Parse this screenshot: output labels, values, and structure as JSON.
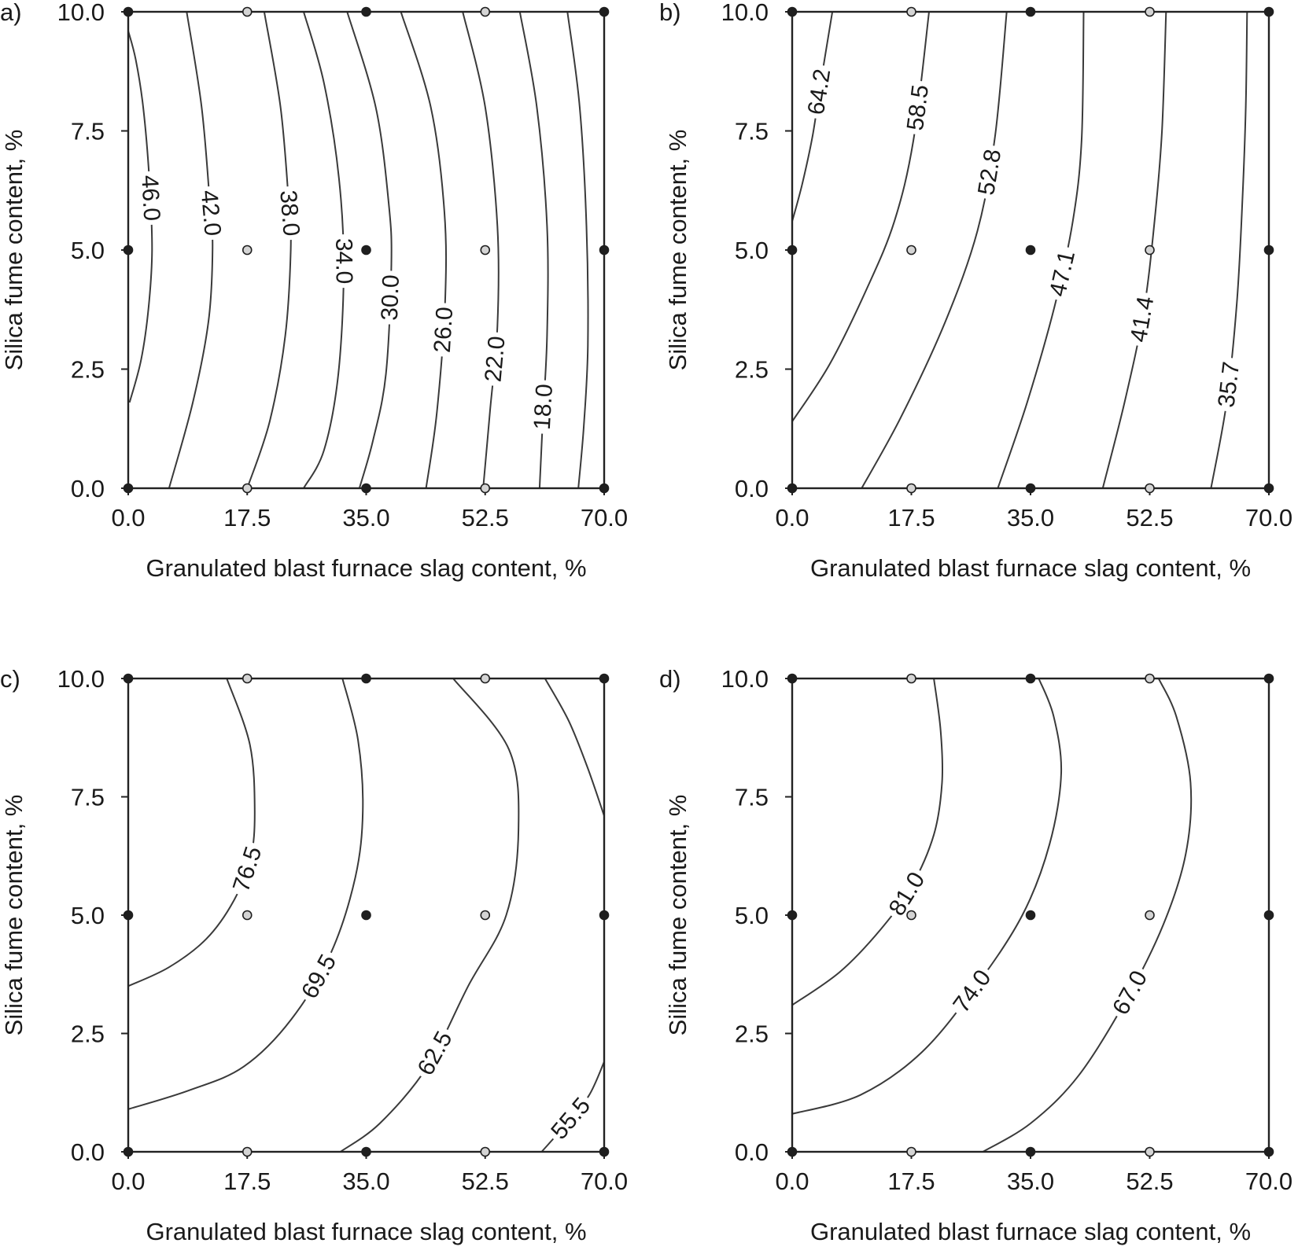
{
  "chart_data": [
    {
      "type": "contour",
      "panel": "a)",
      "xlabel": "Granulated blast furnace slag content, %",
      "ylabel": "Silica fume content, %",
      "xlim": [
        0,
        70
      ],
      "ylim": [
        0,
        10
      ],
      "xticks": [
        "0.0",
        "17.5",
        "35.0",
        "52.5",
        "70.0"
      ],
      "yticks": [
        "0.0",
        "2.5",
        "5.0",
        "7.5",
        "10.0"
      ],
      "design_points": [
        {
          "x": 0,
          "y": 0,
          "tone": "dark"
        },
        {
          "x": 17.5,
          "y": 0,
          "tone": "light"
        },
        {
          "x": 35,
          "y": 0,
          "tone": "dark"
        },
        {
          "x": 52.5,
          "y": 0,
          "tone": "light"
        },
        {
          "x": 70,
          "y": 0,
          "tone": "dark"
        },
        {
          "x": 0,
          "y": 5,
          "tone": "dark"
        },
        {
          "x": 17.5,
          "y": 5,
          "tone": "light"
        },
        {
          "x": 35,
          "y": 5,
          "tone": "dark"
        },
        {
          "x": 52.5,
          "y": 5,
          "tone": "light"
        },
        {
          "x": 70,
          "y": 5,
          "tone": "dark"
        },
        {
          "x": 0,
          "y": 10,
          "tone": "dark"
        },
        {
          "x": 17.5,
          "y": 10,
          "tone": "light"
        },
        {
          "x": 35,
          "y": 10,
          "tone": "dark"
        },
        {
          "x": 52.5,
          "y": 10,
          "tone": "light"
        },
        {
          "x": 70,
          "y": 10,
          "tone": "dark"
        }
      ],
      "contours": [
        {
          "level": "46.0",
          "points": [
            [
              0.0,
              9.6
            ],
            [
              1.1,
              9.0
            ],
            [
              2.2,
              8.0
            ],
            [
              3.1,
              6.5
            ],
            [
              3.5,
              5.0
            ],
            [
              3.0,
              3.8
            ],
            [
              1.9,
              2.7
            ],
            [
              0.2,
              1.8
            ]
          ],
          "label_at": 0.45
        },
        {
          "level": "42.0",
          "points": [
            [
              8.6,
              10
            ],
            [
              10.8,
              8.0
            ],
            [
              12.0,
              6.0
            ],
            [
              12.4,
              5.0
            ],
            [
              11.8,
              3.5
            ],
            [
              9.5,
              1.8
            ],
            [
              6.0,
              0.0
            ]
          ],
          "label_at": 0.42
        },
        {
          "level": "38.0",
          "points": [
            [
              20.0,
              10
            ],
            [
              22.4,
              8.0
            ],
            [
              23.6,
              6.0
            ],
            [
              23.9,
              5.0
            ],
            [
              23.1,
              3.2
            ],
            [
              20.8,
              1.4
            ],
            [
              17.5,
              0.0
            ]
          ],
          "label_at": 0.42
        },
        {
          "level": "34.0",
          "points": [
            [
              25.8,
              10
            ],
            [
              28.8,
              8.5
            ],
            [
              31.0,
              6.5
            ],
            [
              31.7,
              4.6
            ],
            [
              30.9,
              2.4
            ],
            [
              28.8,
              0.8
            ],
            [
              25.8,
              0.0
            ]
          ],
          "label_at": 0.52
        },
        {
          "level": "30.0",
          "points": [
            [
              32.2,
              10
            ],
            [
              36.4,
              8.0
            ],
            [
              38.3,
              6.0
            ],
            [
              38.7,
              4.7
            ],
            [
              37.9,
              2.4
            ],
            [
              36.0,
              1.0
            ],
            [
              34.0,
              0.0
            ]
          ],
          "label_at": 0.6
        },
        {
          "level": "26.0",
          "points": [
            [
              40.1,
              10
            ],
            [
              44.5,
              8.0
            ],
            [
              46.5,
              5.8
            ],
            [
              46.6,
              3.9
            ],
            [
              45.4,
              1.6
            ],
            [
              43.8,
              0.0
            ]
          ],
          "label_at": 0.67
        },
        {
          "level": "22.0",
          "points": [
            [
              49.2,
              10
            ],
            [
              52.5,
              8.0
            ],
            [
              54.3,
              5.5
            ],
            [
              54.3,
              3.4
            ],
            [
              53.2,
              1.6
            ],
            [
              52.2,
              0.0
            ]
          ],
          "label_at": 0.73
        },
        {
          "level": "18.0",
          "points": [
            [
              57.6,
              10
            ],
            [
              60.1,
              8.0
            ],
            [
              61.6,
              5.5
            ],
            [
              61.6,
              3.2
            ],
            [
              61.0,
              1.5
            ],
            [
              60.5,
              0.0
            ]
          ],
          "label_at": 0.83
        },
        {
          "level": "",
          "points": [
            [
              64.6,
              10
            ],
            [
              66.4,
              8.0
            ],
            [
              67.4,
              5.5
            ],
            [
              67.6,
              3.0
            ],
            [
              67.0,
              1.3
            ],
            [
              66.2,
              0.0
            ]
          ],
          "label_at": null
        }
      ]
    },
    {
      "type": "contour",
      "panel": "b)",
      "xlabel": "Granulated blast furnace slag content, %",
      "ylabel": "Silica fume content, %",
      "xlim": [
        0,
        70
      ],
      "ylim": [
        0,
        10
      ],
      "xticks": [
        "0.0",
        "17.5",
        "35.0",
        "52.5",
        "70.0"
      ],
      "yticks": [
        "0.0",
        "2.5",
        "5.0",
        "7.5",
        "10.0"
      ],
      "design_points": [
        {
          "x": 0,
          "y": 0,
          "tone": "dark"
        },
        {
          "x": 17.5,
          "y": 0,
          "tone": "light"
        },
        {
          "x": 35,
          "y": 0,
          "tone": "dark"
        },
        {
          "x": 52.5,
          "y": 0,
          "tone": "light"
        },
        {
          "x": 70,
          "y": 0,
          "tone": "dark"
        },
        {
          "x": 0,
          "y": 5,
          "tone": "dark"
        },
        {
          "x": 17.5,
          "y": 5,
          "tone": "light"
        },
        {
          "x": 35,
          "y": 5,
          "tone": "dark"
        },
        {
          "x": 52.5,
          "y": 5,
          "tone": "light"
        },
        {
          "x": 70,
          "y": 5,
          "tone": "dark"
        },
        {
          "x": 0,
          "y": 10,
          "tone": "dark"
        },
        {
          "x": 17.5,
          "y": 10,
          "tone": "light"
        },
        {
          "x": 35,
          "y": 10,
          "tone": "dark"
        },
        {
          "x": 52.5,
          "y": 10,
          "tone": "light"
        },
        {
          "x": 70,
          "y": 10,
          "tone": "dark"
        }
      ],
      "contours": [
        {
          "level": "64.2",
          "points": [
            [
              0.0,
              5.6
            ],
            [
              1.5,
              6.4
            ],
            [
              3.0,
              7.4
            ],
            [
              4.3,
              8.6
            ],
            [
              5.9,
              10
            ]
          ],
          "label_at": 0.62
        },
        {
          "level": "58.5",
          "points": [
            [
              0.0,
              1.4
            ],
            [
              5.5,
              2.6
            ],
            [
              11.0,
              4.2
            ],
            [
              15.0,
              5.6
            ],
            [
              17.8,
              7.3
            ],
            [
              20.1,
              10
            ]
          ],
          "label_at": 0.78
        },
        {
          "level": "52.8",
          "points": [
            [
              10.2,
              0.0
            ],
            [
              16.0,
              1.5
            ],
            [
              22.5,
              3.5
            ],
            [
              27.2,
              5.4
            ],
            [
              29.8,
              7.4
            ],
            [
              31.5,
              10
            ]
          ],
          "label_at": 0.68
        },
        {
          "level": "47.1",
          "points": [
            [
              30.2,
              0.0
            ],
            [
              34.5,
              1.8
            ],
            [
              38.5,
              3.8
            ],
            [
              41.2,
              5.6
            ],
            [
              42.5,
              7.3
            ],
            [
              42.8,
              10
            ]
          ],
          "label_at": 0.46
        },
        {
          "level": "41.4",
          "points": [
            [
              45.6,
              0.0
            ],
            [
              48.8,
              1.8
            ],
            [
              51.6,
              3.7
            ],
            [
              53.2,
              5.6
            ],
            [
              54.3,
              7.5
            ],
            [
              54.9,
              10
            ]
          ],
          "label_at": 0.36
        },
        {
          "level": "35.7",
          "points": [
            [
              61.5,
              0.0
            ],
            [
              63.8,
              1.8
            ],
            [
              65.3,
              3.9
            ],
            [
              66.1,
              6.0
            ],
            [
              66.6,
              8.0
            ],
            [
              66.8,
              10
            ]
          ],
          "label_at": 0.22
        }
      ]
    },
    {
      "type": "contour",
      "panel": "c)",
      "xlabel": "Granulated blast furnace slag content, %",
      "ylabel": "Silica fume content, %",
      "xlim": [
        0,
        70
      ],
      "ylim": [
        0,
        10
      ],
      "xticks": [
        "0.0",
        "17.5",
        "35.0",
        "52.5",
        "70.0"
      ],
      "yticks": [
        "0.0",
        "2.5",
        "5.0",
        "7.5",
        "10.0"
      ],
      "design_points": [
        {
          "x": 0,
          "y": 0,
          "tone": "dark"
        },
        {
          "x": 17.5,
          "y": 0,
          "tone": "light"
        },
        {
          "x": 35,
          "y": 0,
          "tone": "dark"
        },
        {
          "x": 52.5,
          "y": 0,
          "tone": "light"
        },
        {
          "x": 70,
          "y": 0,
          "tone": "dark"
        },
        {
          "x": 0,
          "y": 5,
          "tone": "dark"
        },
        {
          "x": 17.5,
          "y": 5,
          "tone": "light"
        },
        {
          "x": 35,
          "y": 5,
          "tone": "dark"
        },
        {
          "x": 52.5,
          "y": 5,
          "tone": "light"
        },
        {
          "x": 70,
          "y": 5,
          "tone": "dark"
        },
        {
          "x": 0,
          "y": 10,
          "tone": "dark"
        },
        {
          "x": 17.5,
          "y": 10,
          "tone": "light"
        },
        {
          "x": 35,
          "y": 10,
          "tone": "dark"
        },
        {
          "x": 52.5,
          "y": 10,
          "tone": "light"
        },
        {
          "x": 70,
          "y": 10,
          "tone": "dark"
        }
      ],
      "contours": [
        {
          "level": "76.5",
          "points": [
            [
              0.0,
              3.5
            ],
            [
              6.0,
              3.9
            ],
            [
              11.5,
              4.5
            ],
            [
              15.5,
              5.3
            ],
            [
              18.0,
              6.2
            ],
            [
              18.6,
              7.2
            ],
            [
              17.9,
              8.6
            ],
            [
              14.5,
              10
            ]
          ],
          "label_at": 0.47
        },
        {
          "level": "69.5",
          "points": [
            [
              0.0,
              0.9
            ],
            [
              9.0,
              1.3
            ],
            [
              17.0,
              1.8
            ],
            [
              24.0,
              2.8
            ],
            [
              29.8,
              4.2
            ],
            [
              33.4,
              5.8
            ],
            [
              34.5,
              7.2
            ],
            [
              33.8,
              8.7
            ],
            [
              31.5,
              10
            ]
          ],
          "label_at": 0.44
        },
        {
          "level": "62.5",
          "points": [
            [
              31.2,
              0.0
            ],
            [
              37.0,
              0.6
            ],
            [
              44.0,
              1.8
            ],
            [
              50.0,
              3.5
            ],
            [
              55.6,
              5.0
            ],
            [
              57.4,
              6.8
            ],
            [
              56.0,
              8.5
            ],
            [
              47.8,
              10
            ]
          ],
          "label_at": 0.25
        },
        {
          "level": "55.5",
          "points": [
            [
              60.8,
              0.0
            ],
            [
              64.5,
              0.6
            ],
            [
              67.8,
              1.2
            ],
            [
              70.0,
              1.9
            ]
          ],
          "label_at": 0.4
        },
        {
          "level": "",
          "points": [
            [
              61.3,
              10
            ],
            [
              64.8,
              9.1
            ],
            [
              67.6,
              8.1
            ],
            [
              70.0,
              7.1
            ]
          ],
          "label_at": null
        }
      ]
    },
    {
      "type": "contour",
      "panel": "d)",
      "xlabel": "Granulated blast furnace slag content, %",
      "ylabel": "Silica fume content, %",
      "xlim": [
        0,
        70
      ],
      "ylim": [
        0,
        10
      ],
      "xticks": [
        "0.0",
        "17.5",
        "35.0",
        "52.5",
        "70.0"
      ],
      "yticks": [
        "0.0",
        "2.5",
        "5.0",
        "7.5",
        "10.0"
      ],
      "design_points": [
        {
          "x": 0,
          "y": 0,
          "tone": "dark"
        },
        {
          "x": 17.5,
          "y": 0,
          "tone": "light"
        },
        {
          "x": 35,
          "y": 0,
          "tone": "dark"
        },
        {
          "x": 52.5,
          "y": 0,
          "tone": "light"
        },
        {
          "x": 70,
          "y": 0,
          "tone": "dark"
        },
        {
          "x": 0,
          "y": 5,
          "tone": "dark"
        },
        {
          "x": 17.5,
          "y": 5,
          "tone": "light"
        },
        {
          "x": 35,
          "y": 5,
          "tone": "dark"
        },
        {
          "x": 52.5,
          "y": 5,
          "tone": "light"
        },
        {
          "x": 70,
          "y": 5,
          "tone": "dark"
        },
        {
          "x": 0,
          "y": 10,
          "tone": "dark"
        },
        {
          "x": 17.5,
          "y": 10,
          "tone": "light"
        },
        {
          "x": 35,
          "y": 10,
          "tone": "dark"
        },
        {
          "x": 52.5,
          "y": 10,
          "tone": "light"
        },
        {
          "x": 70,
          "y": 10,
          "tone": "dark"
        }
      ],
      "contours": [
        {
          "level": "81.0",
          "points": [
            [
              0.0,
              3.1
            ],
            [
              7.0,
              3.8
            ],
            [
              13.0,
              4.7
            ],
            [
              17.5,
              5.6
            ],
            [
              20.8,
              6.7
            ],
            [
              22.0,
              7.8
            ],
            [
              21.8,
              8.9
            ],
            [
              20.8,
              10
            ]
          ],
          "label_at": 0.42
        },
        {
          "level": "74.0",
          "points": [
            [
              0.0,
              0.8
            ],
            [
              10.0,
              1.2
            ],
            [
              19.0,
              2.1
            ],
            [
              27.0,
              3.5
            ],
            [
              33.8,
              5.0
            ],
            [
              37.8,
              6.5
            ],
            [
              39.5,
              8.0
            ],
            [
              38.4,
              9.2
            ],
            [
              36.2,
              10
            ]
          ],
          "label_at": 0.4
        },
        {
          "level": "67.0",
          "points": [
            [
              28.0,
              0.0
            ],
            [
              35.0,
              0.6
            ],
            [
              42.0,
              1.6
            ],
            [
              49.0,
              3.2
            ],
            [
              54.5,
              4.8
            ],
            [
              57.8,
              6.3
            ],
            [
              58.5,
              7.8
            ],
            [
              56.4,
              9.2
            ],
            [
              53.8,
              10
            ]
          ],
          "label_at": 0.4
        }
      ]
    }
  ]
}
